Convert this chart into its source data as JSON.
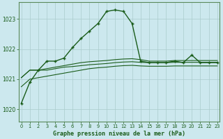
{
  "xlabel": "Graphe pression niveau de la mer (hPa)",
  "bg_color": "#cce8ee",
  "grid_color": "#aacccc",
  "line_color": "#1a5c1a",
  "text_color": "#1a5c1a",
  "border_color": "#5a8a5a",
  "yticks": [
    1020,
    1021,
    1022,
    1023
  ],
  "ylim": [
    1019.6,
    1023.55
  ],
  "xlim": [
    -0.3,
    23.3
  ],
  "xticks": [
    0,
    1,
    2,
    3,
    4,
    5,
    6,
    7,
    8,
    9,
    10,
    11,
    12,
    13,
    14,
    15,
    16,
    17,
    18,
    19,
    20,
    21,
    22,
    23
  ],
  "line1_x": [
    0,
    1,
    2,
    3,
    4,
    5,
    6,
    7,
    8,
    9,
    10,
    11,
    12,
    13,
    14,
    15,
    16,
    17,
    18,
    19,
    20,
    21,
    22,
    23
  ],
  "line1_y": [
    1020.2,
    1020.9,
    1021.3,
    1021.6,
    1021.6,
    1021.7,
    1022.05,
    1022.35,
    1022.6,
    1022.85,
    1023.25,
    1023.3,
    1023.25,
    1022.85,
    1021.6,
    1021.55,
    1021.55,
    1021.55,
    1021.6,
    1021.55,
    1021.8,
    1021.55,
    1021.55,
    1021.55
  ],
  "line2_x": [
    0,
    1,
    2,
    3,
    4,
    5,
    6,
    7,
    8,
    9,
    10,
    11,
    12,
    13,
    14,
    15,
    16,
    17,
    18,
    19,
    20,
    21,
    22,
    23
  ],
  "line2_y": [
    1021.05,
    1021.3,
    1021.3,
    1021.35,
    1021.4,
    1021.45,
    1021.5,
    1021.55,
    1021.58,
    1021.6,
    1021.62,
    1021.65,
    1021.67,
    1021.68,
    1021.65,
    1021.6,
    1021.6,
    1021.6,
    1021.62,
    1021.62,
    1021.62,
    1021.62,
    1021.62,
    1021.62
  ],
  "line3_x": [
    0,
    1,
    2,
    3,
    4,
    5,
    6,
    7,
    8,
    9,
    10,
    11,
    12,
    13,
    14,
    15,
    16,
    17,
    18,
    19,
    20,
    21,
    22,
    23
  ],
  "line3_y": [
    1021.05,
    1021.3,
    1021.3,
    1021.3,
    1021.35,
    1021.4,
    1021.42,
    1021.45,
    1021.48,
    1021.5,
    1021.52,
    1021.55,
    1021.57,
    1021.58,
    1021.56,
    1021.55,
    1021.55,
    1021.55,
    1021.56,
    1021.56,
    1021.56,
    1021.56,
    1021.56,
    1021.56
  ],
  "line4_x": [
    0,
    1,
    2,
    3,
    4,
    5,
    6,
    7,
    8,
    9,
    10,
    11,
    12,
    13,
    14,
    15,
    16,
    17,
    18,
    19,
    20,
    21,
    22,
    23
  ],
  "line4_y": [
    1020.75,
    1021.0,
    1021.05,
    1021.1,
    1021.15,
    1021.2,
    1021.25,
    1021.3,
    1021.35,
    1021.38,
    1021.4,
    1021.43,
    1021.45,
    1021.46,
    1021.44,
    1021.43,
    1021.43,
    1021.43,
    1021.44,
    1021.44,
    1021.44,
    1021.44,
    1021.44,
    1021.44
  ]
}
